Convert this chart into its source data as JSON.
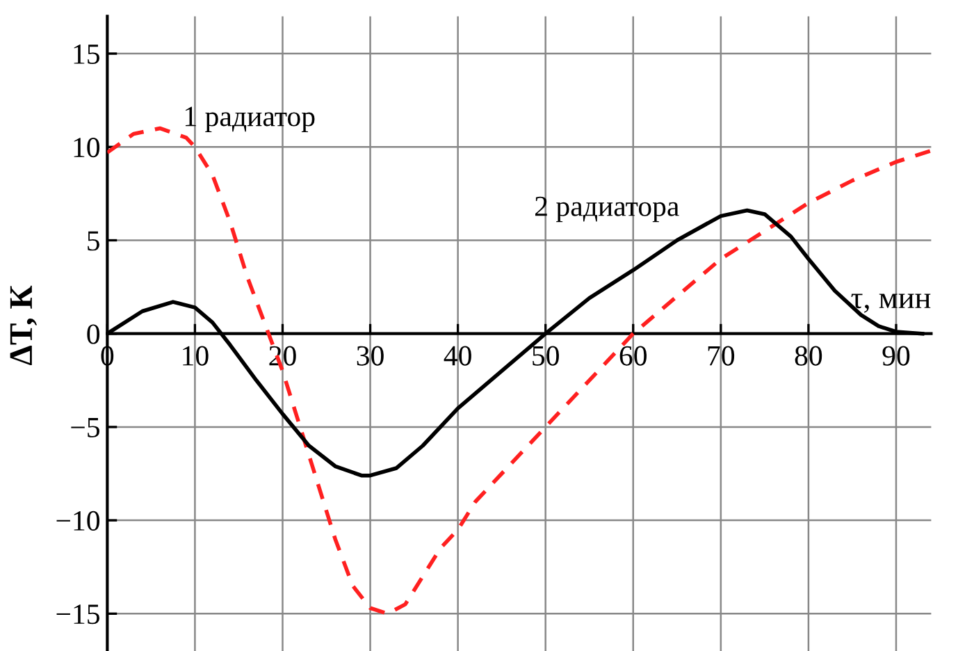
{
  "chart_data": {
    "type": "line",
    "xlabel": "τ, мин",
    "ylabel": "ΔT, К",
    "xlim": [
      0,
      94
    ],
    "ylim": [
      -17,
      17
    ],
    "xticks": [
      0,
      10,
      20,
      30,
      40,
      50,
      60,
      70,
      80,
      90
    ],
    "yticks": [
      {
        "value": -15,
        "label": "−15"
      },
      {
        "value": -10,
        "label": "−10"
      },
      {
        "value": -5,
        "label": "−5"
      },
      0,
      5,
      10,
      15
    ],
    "grid": true,
    "legend": false,
    "series": [
      {
        "name": "1 радиатор",
        "color": "#ff2020",
        "line_style": "dashed",
        "x": [
          0,
          3,
          6,
          9,
          10,
          12,
          14,
          16,
          18,
          20,
          22,
          24,
          26,
          28,
          30,
          32,
          34,
          36,
          38,
          40,
          42,
          45,
          50,
          55,
          60,
          65,
          70,
          75,
          80,
          85,
          90,
          94
        ],
        "values": [
          9.7,
          10.7,
          11.0,
          10.5,
          10,
          8.5,
          6,
          3,
          0.5,
          -2,
          -5,
          -8,
          -11,
          -13.5,
          -14.7,
          -15,
          -14.5,
          -13,
          -11.5,
          -10.5,
          -9,
          -7.5,
          -5,
          -2.5,
          0,
          2,
          4,
          5.5,
          7,
          8.2,
          9.2,
          9.8
        ]
      },
      {
        "name": "2 радиатора",
        "color": "#000000",
        "line_style": "solid",
        "x": [
          0,
          4,
          7.5,
          10,
          12,
          14,
          17,
          20,
          23,
          26,
          29,
          30,
          33,
          36,
          40,
          45,
          50,
          55,
          60,
          65,
          70,
          73,
          75,
          78,
          80,
          83,
          86,
          88,
          90,
          93
        ],
        "values": [
          0,
          1.2,
          1.7,
          1.4,
          0.6,
          -0.6,
          -2.5,
          -4.3,
          -6,
          -7.1,
          -7.6,
          -7.6,
          -7.2,
          -6,
          -4,
          -2,
          0,
          1.9,
          3.4,
          5,
          6.3,
          6.6,
          6.4,
          5.2,
          4,
          2.3,
          1,
          0.4,
          0.1,
          0
        ]
      }
    ]
  }
}
